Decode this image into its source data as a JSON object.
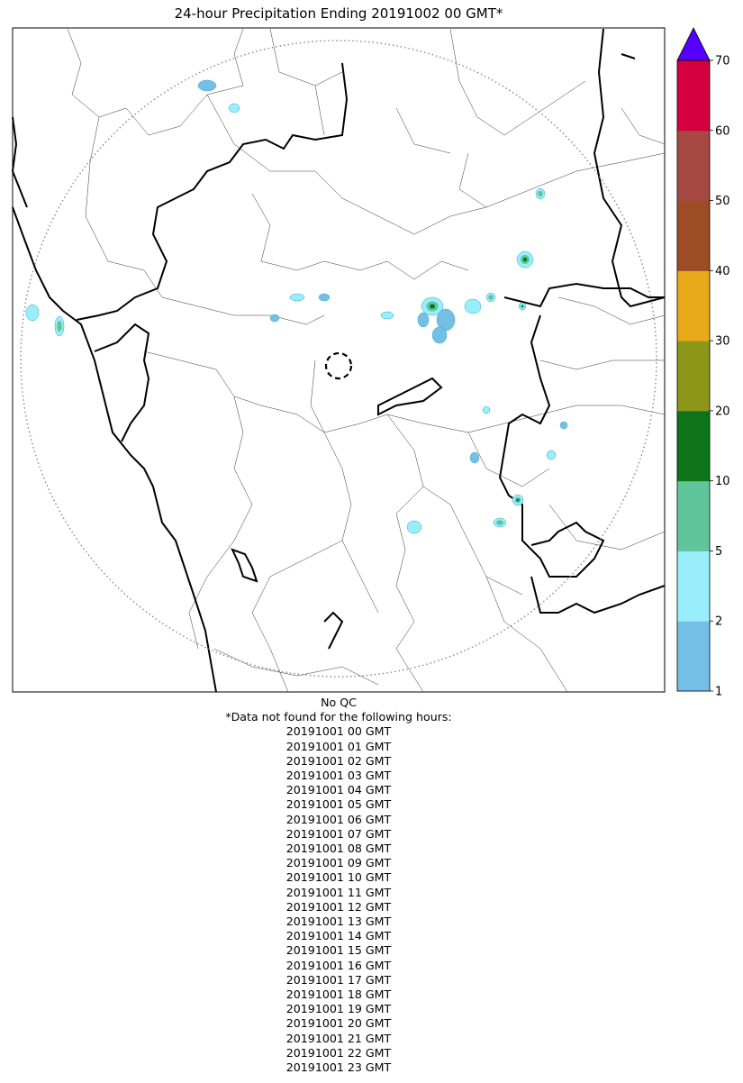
{
  "title": "24-hour Precipitation Ending 20191002 00 GMT*",
  "notes": {
    "qc": "No QC",
    "missing_header": "*Data not found for the following hours:",
    "missing_hours": [
      "20191001 00 GMT",
      "20191001 01 GMT",
      "20191001 02 GMT",
      "20191001 03 GMT",
      "20191001 04 GMT",
      "20191001 05 GMT",
      "20191001 06 GMT",
      "20191001 07 GMT",
      "20191001 08 GMT",
      "20191001 09 GMT",
      "20191001 10 GMT",
      "20191001 11 GMT",
      "20191001 12 GMT",
      "20191001 13 GMT",
      "20191001 14 GMT",
      "20191001 15 GMT",
      "20191001 16 GMT",
      "20191001 17 GMT",
      "20191001 18 GMT",
      "20191001 19 GMT",
      "20191001 20 GMT",
      "20191001 21 GMT",
      "20191001 22 GMT",
      "20191001 23 GMT"
    ]
  },
  "colorbar": {
    "levels": [
      1,
      2,
      5,
      10,
      20,
      30,
      40,
      50,
      60,
      70
    ],
    "tick_labels": [
      "1",
      "2",
      "5",
      "10",
      "20",
      "30",
      "40",
      "50",
      "60",
      "70"
    ],
    "colors": [
      "#74c0e4",
      "#98eefb",
      "#60c59b",
      "#0d7419",
      "#8c9618",
      "#e8aa18",
      "#9c4d25",
      "#a54942",
      "#d5003f"
    ],
    "over_color": "#5500ff",
    "extend": "max"
  },
  "map": {
    "radar_range_ring": "dotted",
    "radar_site_marker": "dashed-circle",
    "precip_cells": [
      {
        "value": 1.5
      },
      {
        "value": 3.5
      },
      {
        "value": 7
      },
      {
        "value": 15
      },
      {
        "value": 3.5
      },
      {
        "value": 7
      },
      {
        "value": 15
      },
      {
        "value": 1.5
      },
      {
        "value": 3.5
      },
      {
        "value": 1.5
      },
      {
        "value": 3.5
      },
      {
        "value": 1.5
      }
    ]
  }
}
